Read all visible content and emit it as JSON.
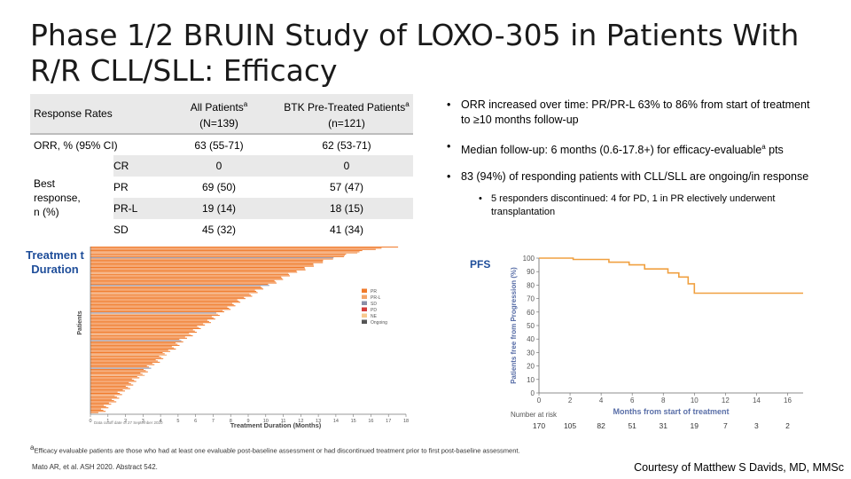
{
  "title": {
    "line1": "Phase 1/2 BRUIN Study of LOXO-305 in Patients With",
    "line2": "R/R CLL/SLL: Efficacy"
  },
  "table": {
    "header_label": "Response Rates",
    "col_all_line1": "All Patients",
    "col_all_sup": "a",
    "col_all_line2": "(N=139)",
    "col_btk_line1": "BTK Pre-Treated Patients",
    "col_btk_sup": "a",
    "col_btk_line2": "(n=121)",
    "orr_label": "ORR, % (95% CI)",
    "orr_all": "63 (55-71)",
    "orr_btk": "62 (53-71)",
    "best_label_1": "Best",
    "best_label_2": "response,",
    "best_label_3": "n (%)",
    "rows": [
      {
        "resp": "CR",
        "all": "0",
        "btk": "0"
      },
      {
        "resp": "PR",
        "all": "69 (50)",
        "btk": "57 (47)"
      },
      {
        "resp": "PR-L",
        "all": "19 (14)",
        "btk": "18 (15)"
      },
      {
        "resp": "SD",
        "all": "45 (32)",
        "btk": "41 (34)"
      }
    ]
  },
  "bullets": {
    "b1": "ORR increased over time: PR/PR-L 63% to 86% from start of treatment to ≥10 months follow-up",
    "b2_pre": "Median follow-up: 6 months (0.6-17.8+) for efficacy-evaluable",
    "b2_sup": "a",
    "b2_post": " pts",
    "b3": "83 (94%) of responding patients with CLL/SLL are ongoing/in response",
    "sub": "5 responders discontinued: 4 for PD, 1 in PR electively underwent transplantation"
  },
  "labels": {
    "treatment_duration": "Treatmen t Duration",
    "pfs": "PFS"
  },
  "swimmer": {
    "ylabel": "Patients",
    "xlabel": "Treatment Duration (Months)",
    "ticks": [
      "0",
      "1",
      "2",
      "3",
      "4",
      "5",
      "6",
      "7",
      "8",
      "9",
      "10",
      "11",
      "12",
      "13",
      "14",
      "15",
      "16",
      "17",
      "18"
    ],
    "cutoff": "Data cutoff date of 27 September 2020",
    "legend": [
      {
        "label": "PR",
        "color": "#f07a2a"
      },
      {
        "label": "PR-L",
        "color": "#f3a56b"
      },
      {
        "label": "SD",
        "color": "#8a8fa8"
      },
      {
        "label": "PD",
        "color": "#d43c3c"
      },
      {
        "label": "NE",
        "color": "#f7c98e"
      },
      {
        "label": "Ongoing",
        "color": "#555555"
      }
    ]
  },
  "chart_data": {
    "type": "line",
    "title": "",
    "xlabel": "Months from start of treatment",
    "ylabel": "Patients free from Progression (%)",
    "xlim": [
      0,
      17
    ],
    "ylim": [
      0,
      100
    ],
    "x_ticks": [
      0,
      2,
      4,
      6,
      8,
      10,
      12,
      14,
      16
    ],
    "y_ticks": [
      0,
      10,
      20,
      30,
      40,
      50,
      60,
      70,
      80,
      90,
      100
    ],
    "series": [
      {
        "x": [
          0,
          2.2,
          2.2,
          4.5,
          4.5,
          5.8,
          5.8,
          6.8,
          6.8,
          8.3,
          8.3,
          9.0,
          9.0,
          9.6,
          9.6,
          10.0,
          10.0,
          17
        ],
        "values": [
          100,
          100,
          99,
          99,
          97,
          97,
          95,
          95,
          92,
          92,
          89,
          89,
          86,
          86,
          81,
          81,
          74,
          74
        ],
        "color": "#f0a040"
      }
    ],
    "number_at_risk_label": "Number at risk",
    "number_at_risk": [
      "170",
      "105",
      "82",
      "51",
      "31",
      "19",
      "7",
      "3",
      "2"
    ]
  },
  "footnote": {
    "sup": "a",
    "text": "Efficacy evaluable patients are those who had at least one evaluable post-baseline assessment or had discontinued treatment prior to first post-baseline assessment."
  },
  "citation": "Mato AR, et al. ASH 2020. Abstract 542.",
  "courtesy": "Courtesy of Matthew S Davids, MD, MMSc"
}
